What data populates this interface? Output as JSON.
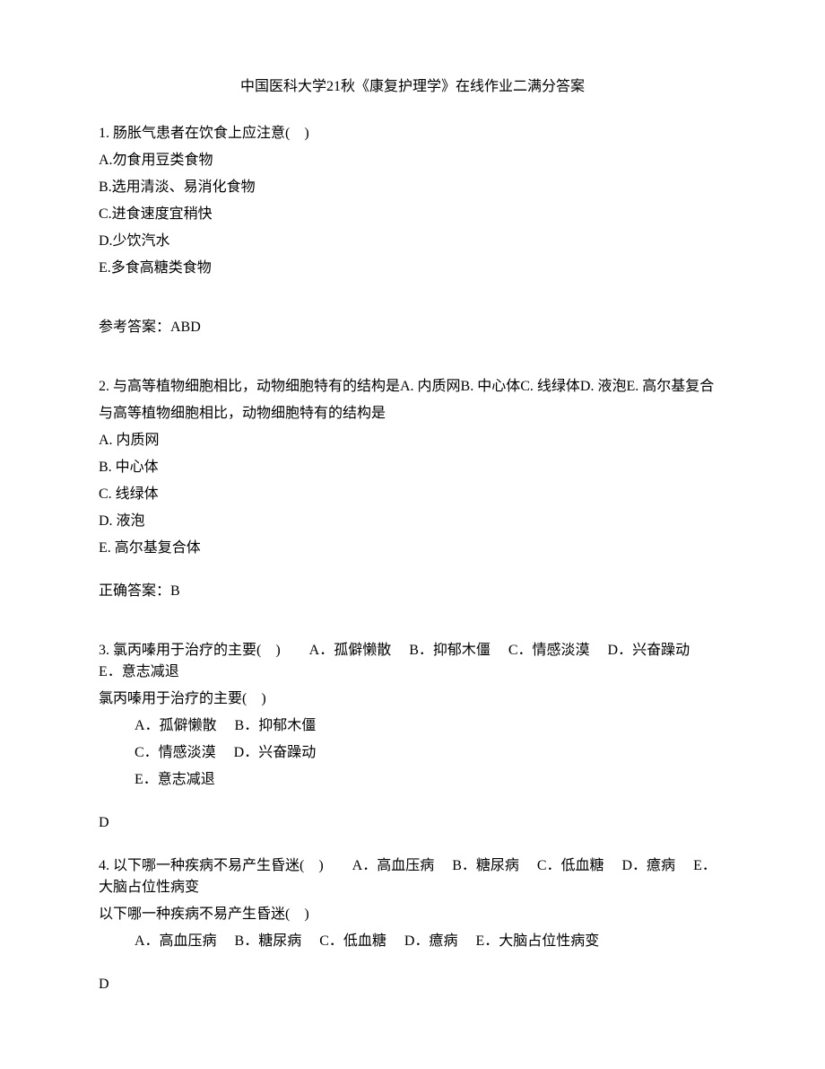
{
  "title": "中国医科大学21秋《康复护理学》在线作业二满分答案",
  "q1": {
    "stem": "1. 肠胀气患者在饮食上应注意(　)",
    "a": "A.勿食用豆类食物",
    "b": "B.选用清淡、易消化食物",
    "c": "C.进食速度宜稍快",
    "d": "D.少饮汽水",
    "e": "E.多食高糖类食物",
    "ans": "参考答案：ABD"
  },
  "q2": {
    "stem1": "2. 与高等植物细胞相比，动物细胞特有的结构是A. 内质网B. 中心体C. 线绿体D. 液泡E. 高尔基复合",
    "stem2": "与高等植物细胞相比，动物细胞特有的结构是",
    "a": "A. 内质网",
    "b": "B. 中心体",
    "c": "C. 线绿体",
    "d": "D. 液泡",
    "e": "E. 高尔基复合体",
    "ans": "正确答案：B"
  },
  "q3": {
    "stem1": "3. 氯丙嗪用于治疗的主要(　)　　A．孤僻懒散　 B．抑郁木僵　 C．情感淡漠　 D．兴奋躁动　 E．意志减退",
    "stem2": "氯丙嗪用于治疗的主要(　)",
    "optA": "A．孤僻懒散　 B．抑郁木僵",
    "optB": "C．情感淡漠　 D．兴奋躁动",
    "optC": "E．意志减退",
    "ans": "D"
  },
  "q4": {
    "stem1": "4. 以下哪一种疾病不易产生昏迷(　)　　A．高血压病　 B．糖尿病　 C．低血糖　 D．癔病　 E．大脑占位性病变",
    "stem2": "以下哪一种疾病不易产生昏迷(　)",
    "opts": "A．高血压病　 B．糖尿病　 C．低血糖　 D．癔病　 E．大脑占位性病变",
    "ans": "D"
  }
}
